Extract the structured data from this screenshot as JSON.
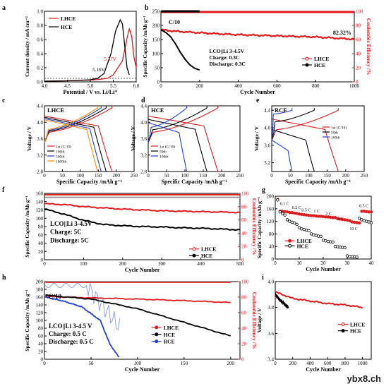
{
  "watermark": "ybx8.ch",
  "colors": {
    "LHCE": "#e31a1c",
    "HCE": "#000000",
    "RCE": "#1f3fd6",
    "orange": "#ff8c00",
    "blue": "#1f3fd6"
  },
  "chart_data": [
    {
      "panel": "a",
      "type": "line",
      "xlabel": "Potential / V vs. Li/Li⁺",
      "ylabel": "Current density / mA cm⁻²",
      "xlim": [
        4.0,
        6.0
      ],
      "ylim": [
        0,
        1.0
      ],
      "xticks": [
        "4.0",
        "4.5",
        "5.0",
        "5.5",
        "6.0"
      ],
      "yticks": [
        "0.0",
        "0.2",
        "0.4",
        "0.6",
        "0.8",
        "1.0"
      ],
      "series": [
        {
          "name": "LHCE",
          "x": [
            4.0,
            4.5,
            5.0,
            5.2,
            5.37,
            5.5,
            5.7,
            5.8,
            5.85,
            5.9,
            5.95,
            6.0
          ],
          "y": [
            0.01,
            0.015,
            0.025,
            0.035,
            0.05,
            0.1,
            0.3,
            0.62,
            0.75,
            0.65,
            0.35,
            0.2
          ]
        },
        {
          "name": "HCE",
          "x": [
            4.0,
            4.5,
            5.0,
            5.16,
            5.3,
            5.45,
            5.55,
            5.65,
            5.7,
            5.75,
            5.8,
            5.85
          ],
          "y": [
            0.01,
            0.015,
            0.03,
            0.05,
            0.12,
            0.4,
            0.72,
            0.88,
            0.82,
            0.5,
            0.2,
            0.1
          ]
        }
      ],
      "annotations": [
        "5.16V",
        "5.37V"
      ]
    },
    {
      "panel": "b",
      "type": "line",
      "xlabel": "Cycle Number",
      "ylabel": "Specific Capacity /mAh g⁻¹",
      "y2label": "Coulombic Efficiency /%",
      "xlim": [
        0,
        1000
      ],
      "ylim": [
        0,
        250
      ],
      "y2lim": [
        0,
        100
      ],
      "xticks": [
        "0",
        "200",
        "400",
        "600",
        "800",
        "1000"
      ],
      "yticks": [
        "0",
        "50",
        "100",
        "150",
        "200",
        "250"
      ],
      "y2ticks": [
        "0",
        "20",
        "40",
        "60",
        "80",
        "100"
      ],
      "series": [
        {
          "name": "LHCE",
          "x": [
            1,
            100,
            200,
            300,
            400,
            500,
            600,
            700,
            800,
            900,
            1000
          ],
          "y": [
            184,
            178,
            174,
            170,
            167,
            165,
            163,
            161,
            159,
            155,
            151
          ]
        },
        {
          "name": "HCE",
          "x": [
            1,
            25,
            50,
            75,
            100,
            125,
            150,
            175,
            200
          ],
          "y": [
            184,
            175,
            160,
            135,
            105,
            80,
            60,
            48,
            42
          ]
        },
        {
          "name": "LHCE CE",
          "x": [
            1,
            1000
          ],
          "y": [
            100,
            100
          ]
        },
        {
          "name": "HCE CE",
          "x": [
            1,
            200
          ],
          "y": [
            100,
            100
          ]
        }
      ],
      "annotations": [
        "C/10",
        "82.32%",
        "LCO||Li  3-4.5V",
        "Charge:  0.3C",
        "Discharge:    0.3C"
      ]
    },
    {
      "panel": "c",
      "type": "line",
      "title": "LHCE",
      "xlabel": "Specific Capacity /mAh g⁻¹",
      "ylabel": "Voltage / V",
      "xlim": [
        0,
        250
      ],
      "ylim": [
        2.8,
        4.4
      ],
      "xticks": [
        "0",
        "50",
        "100",
        "150",
        "200",
        "250"
      ],
      "yticks": [
        "2.8",
        "3.2",
        "3.6",
        "4.0",
        "4.4"
      ],
      "legend": [
        "1st (C/10)",
        "100th",
        "500th",
        "1000th"
      ],
      "caps": [
        188,
        172,
        158,
        148
      ]
    },
    {
      "panel": "d",
      "type": "line",
      "title": "HCE",
      "xlabel": "Specific Capacity /mAh g⁻¹",
      "ylabel": "Voltage / V",
      "xlim": [
        0,
        250
      ],
      "ylim": [
        2.8,
        4.4
      ],
      "xticks": [
        "0",
        "50",
        "100",
        "150",
        "200",
        "250"
      ],
      "yticks": [
        "2.8",
        "3.2",
        "3.6",
        "4.0",
        "4.4"
      ],
      "legend": [
        "1st (C/10)",
        "50th",
        "100th"
      ],
      "caps": [
        190,
        160,
        105
      ]
    },
    {
      "panel": "e",
      "type": "line",
      "title": "RCE",
      "xlabel": "Specific Capacity /mAh g⁻¹",
      "ylabel": "Voltage / V",
      "xlim": [
        0,
        250
      ],
      "ylim": [
        3.0,
        4.5
      ],
      "xticks": [
        "0",
        "50",
        "100",
        "150",
        "200",
        "250"
      ],
      "yticks": [
        "3.2",
        "3.6",
        "4.0",
        "4.4"
      ],
      "legend": [
        "1st (C/10)",
        "50th",
        "100th"
      ],
      "caps": [
        180,
        115,
        55
      ]
    },
    {
      "panel": "f",
      "type": "line",
      "xlabel": "Cycle Number",
      "ylabel": "Specific Capacity /mAh g⁻¹",
      "y2label": "Coulombic Efficiency /%",
      "xlim": [
        0,
        500
      ],
      "ylim": [
        0,
        160
      ],
      "y2lim": [
        0,
        100
      ],
      "xticks": [
        "0",
        "100",
        "200",
        "300",
        "400",
        "500"
      ],
      "yticks": [
        "0",
        "20",
        "40",
        "60",
        "80",
        "100",
        "120",
        "140",
        "160"
      ],
      "y2ticks": [
        "0",
        "20",
        "40",
        "60",
        "80",
        "100"
      ],
      "series": [
        {
          "name": "LHCE",
          "x": [
            1,
            50,
            100,
            150,
            200,
            250,
            300,
            350,
            400,
            450,
            500
          ],
          "y": [
            135,
            133,
            128,
            125,
            122,
            120,
            118,
            117,
            116,
            115,
            114
          ]
        },
        {
          "name": "HCE",
          "x": [
            1,
            50,
            100,
            150,
            200,
            250,
            300,
            350,
            400,
            450,
            500
          ],
          "y": [
            122,
            110,
            95,
            85,
            82,
            80,
            79,
            77,
            76,
            74,
            72
          ]
        }
      ],
      "annotations": [
        "LCO||Li  3-4.5V",
        "Charge:  5C",
        "Discharge:   5C"
      ]
    },
    {
      "panel": "g",
      "type": "scatter",
      "xlabel": "Cycle Number",
      "ylabel": "Specific Capacity /mAh g⁻¹",
      "xlim": [
        0,
        40
      ],
      "ylim": [
        0,
        200
      ],
      "xticks": [
        "0",
        "10",
        "20",
        "30",
        "40"
      ],
      "yticks": [
        "0",
        "40",
        "80",
        "120",
        "160",
        "200"
      ],
      "rate_labels": [
        "0.1 C",
        "0.2 C",
        "0.5 C",
        "1 C",
        "2 C",
        "5 C",
        "10 C",
        "0.5 C"
      ],
      "series": [
        {
          "name": "LHCE",
          "values": [
            190,
            152,
            152,
            151,
            150,
            148,
            148,
            146,
            145,
            143,
            142,
            141,
            140,
            139,
            138,
            138,
            137,
            136,
            136,
            135,
            134,
            134,
            133,
            132,
            132,
            128,
            127,
            126,
            125,
            124,
            122,
            118,
            117,
            116,
            115,
            152,
            152,
            151,
            150,
            150
          ]
        },
        {
          "name": "HCE",
          "values": [
            188,
            150,
            145,
            140,
            125,
            120,
            117,
            115,
            110,
            100,
            96,
            94,
            92,
            90,
            80,
            77,
            75,
            73,
            72,
            60,
            58,
            56,
            55,
            54,
            40,
            39,
            38,
            37,
            36,
            10,
            8,
            7,
            7,
            6,
            130,
            125,
            122,
            120,
            118,
            116
          ]
        }
      ]
    },
    {
      "panel": "h",
      "type": "line",
      "xlabel": "Cycle Number",
      "ylabel": "Specific Capacity /mAh g⁻¹",
      "y2label": "Coulombic Efficiency /%",
      "xlim": [
        0,
        210
      ],
      "ylim": [
        0,
        200
      ],
      "y2lim": [
        0,
        100
      ],
      "xticks": [
        "0",
        "50",
        "100",
        "150",
        "200"
      ],
      "yticks": [
        "0",
        "20",
        "40",
        "60",
        "80",
        "100",
        "120",
        "140",
        "160",
        "180",
        "200"
      ],
      "y2ticks": [
        "0",
        "20",
        "40",
        "60",
        "80",
        "100"
      ],
      "series": [
        {
          "name": "LHCE",
          "x": [
            1,
            50,
            100,
            150,
            200
          ],
          "y": [
            162,
            158,
            155,
            151,
            146
          ]
        },
        {
          "name": "HCE",
          "x": [
            1,
            50,
            100,
            150,
            200
          ],
          "y": [
            165,
            155,
            130,
            95,
            60
          ]
        },
        {
          "name": "RCE",
          "x": [
            1,
            20,
            40,
            60,
            70,
            80
          ],
          "y": [
            160,
            150,
            135,
            100,
            40,
            5
          ]
        }
      ],
      "annotations": [
        "C/10",
        "LCO||Li  3-4.5 V",
        "Charge:   0.5 C",
        "Discharge:  0.5 C"
      ]
    },
    {
      "panel": "i",
      "type": "line",
      "xlabel": "Cycle Number",
      "ylabel": "Voltage / V",
      "xlim": [
        0,
        1100
      ],
      "ylim": [
        3.4,
        4.0
      ],
      "xticks": [
        "0",
        "200",
        "400",
        "600",
        "800",
        "1000"
      ],
      "yticks": [
        "3.4",
        "3.6",
        "3.8",
        "4.0"
      ],
      "series": [
        {
          "name": "LHCE",
          "x": [
            1,
            200,
            400,
            600,
            800,
            1000
          ],
          "y": [
            3.92,
            3.87,
            3.85,
            3.83,
            3.82,
            3.8
          ]
        },
        {
          "name": "HCE",
          "x": [
            1,
            50,
            100,
            150
          ],
          "y": [
            3.9,
            3.86,
            3.83,
            3.8
          ]
        }
      ]
    }
  ]
}
